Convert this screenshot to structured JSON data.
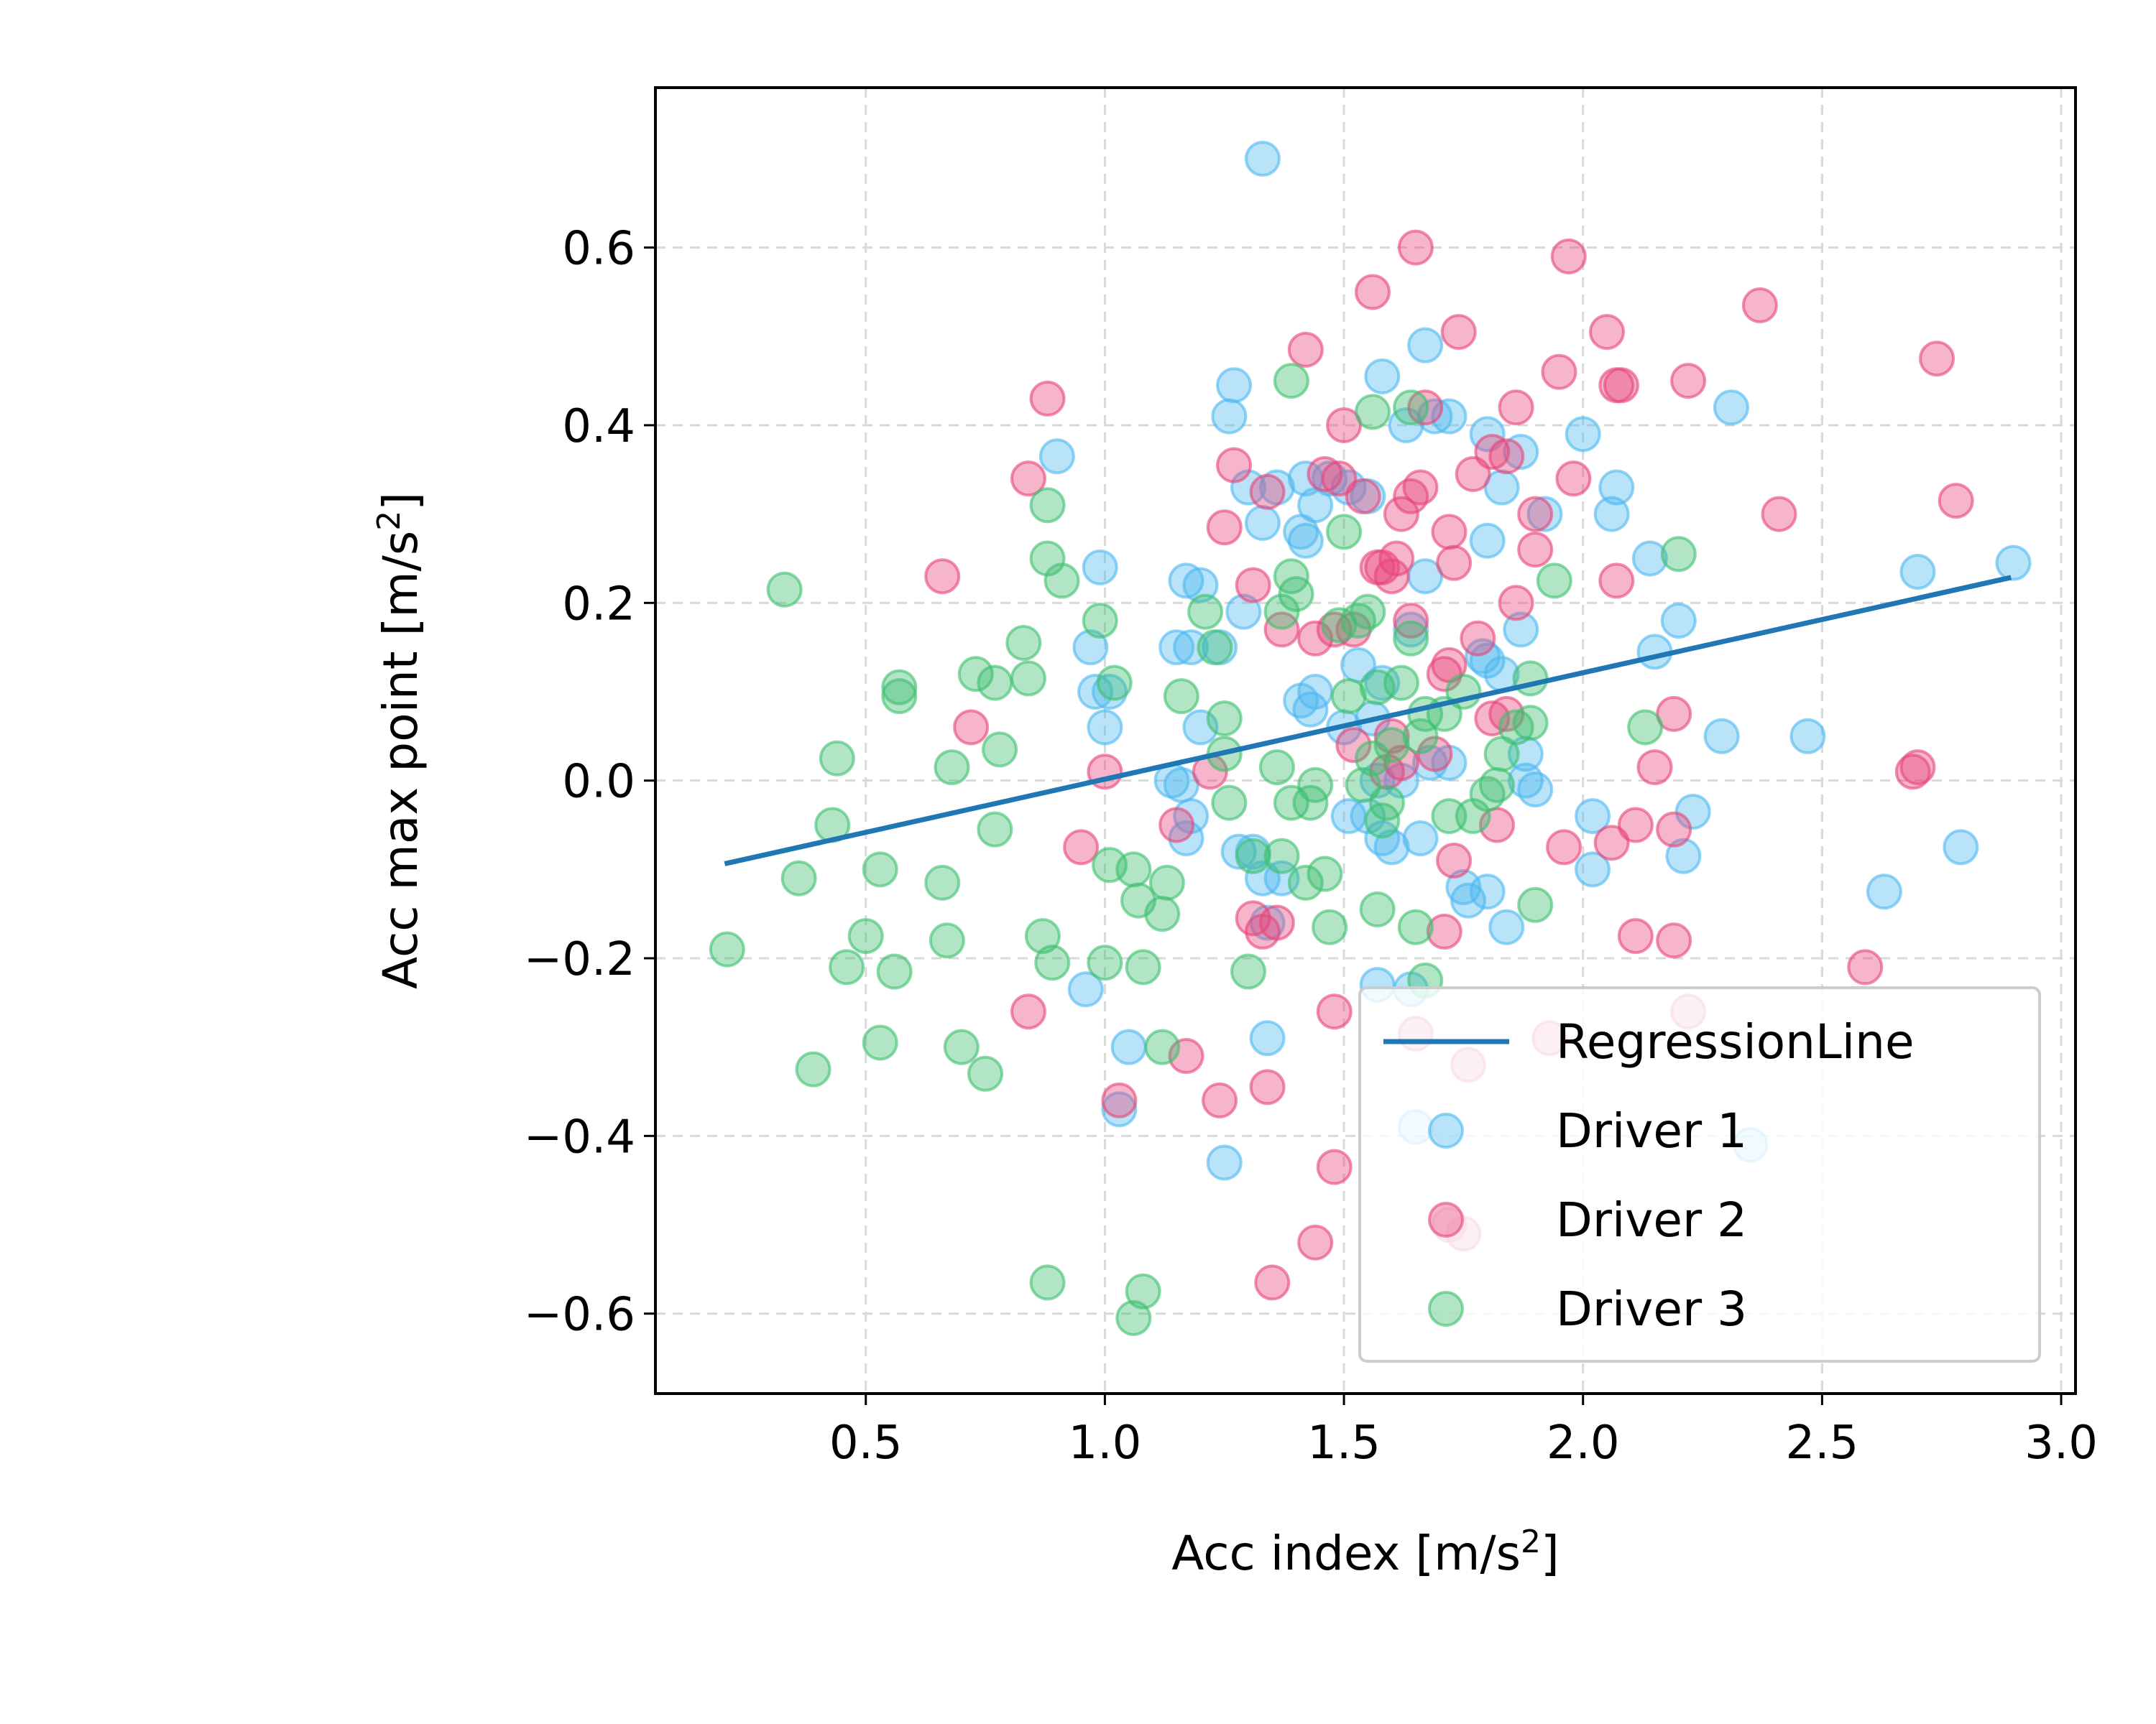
{
  "chart_data": {
    "type": "scatter",
    "xlabel": "Acc index [m/s",
    "xlabel_sup": "2",
    "xlabel_end": "]",
    "ylabel": "Acc max point [m/s",
    "ylabel_sup": "2",
    "ylabel_end": "]",
    "xlim": [
      0.06,
      3.03
    ],
    "ylim": [
      -0.69,
      0.78
    ],
    "x_ticks": [
      0.5,
      1.0,
      1.5,
      2.0,
      2.5,
      3.0
    ],
    "x_tick_labels": [
      "0.5",
      "1.0",
      "1.5",
      "2.0",
      "2.5",
      "3.0"
    ],
    "y_ticks": [
      -0.6,
      -0.4,
      -0.2,
      0.0,
      0.2,
      0.4,
      0.6
    ],
    "y_tick_labels": [
      "−0.6",
      "−0.4",
      "−0.2",
      "0.0",
      "0.2",
      "0.4",
      "0.6"
    ],
    "grid": true,
    "legend_position": "bottom-right",
    "regression": {
      "name": "RegressionLine",
      "color": "#1f77b4",
      "x": [
        0.21,
        2.89
      ],
      "y": [
        -0.093,
        0.228
      ]
    },
    "series": [
      {
        "name": "Driver 1",
        "color": "#4db8f0",
        "points": [
          [
            1.33,
            0.7
          ],
          [
            1.58,
            0.455
          ],
          [
            1.67,
            0.49
          ],
          [
            1.27,
            0.445
          ],
          [
            0.9,
            0.365
          ],
          [
            1.26,
            0.41
          ],
          [
            1.3,
            0.33
          ],
          [
            1.36,
            0.33
          ],
          [
            1.42,
            0.34
          ],
          [
            1.47,
            0.34
          ],
          [
            1.51,
            0.33
          ],
          [
            1.55,
            0.32
          ],
          [
            1.41,
            0.28
          ],
          [
            1.42,
            0.27
          ],
          [
            1.33,
            0.29
          ],
          [
            1.44,
            0.31
          ],
          [
            1.2,
            0.22
          ],
          [
            1.17,
            0.225
          ],
          [
            1.29,
            0.19
          ],
          [
            0.99,
            0.24
          ],
          [
            1.15,
            0.15
          ],
          [
            1.18,
            0.15
          ],
          [
            1.24,
            0.15
          ],
          [
            0.97,
            0.15
          ],
          [
            1.01,
            0.1
          ],
          [
            0.98,
            0.1
          ],
          [
            1.0,
            0.06
          ],
          [
            1.2,
            0.06
          ],
          [
            1.14,
            0.0
          ],
          [
            1.16,
            -0.005
          ],
          [
            1.17,
            -0.065
          ],
          [
            1.18,
            -0.04
          ],
          [
            1.28,
            -0.08
          ],
          [
            1.31,
            -0.08
          ],
          [
            1.33,
            -0.11
          ],
          [
            1.37,
            -0.11
          ],
          [
            1.34,
            -0.16
          ],
          [
            0.96,
            -0.235
          ],
          [
            1.05,
            -0.3
          ],
          [
            1.03,
            -0.37
          ],
          [
            1.34,
            -0.29
          ],
          [
            1.25,
            -0.43
          ],
          [
            1.57,
            -0.23
          ],
          [
            1.64,
            -0.235
          ],
          [
            1.65,
            -0.39
          ],
          [
            2.35,
            -0.41
          ],
          [
            1.75,
            -0.12
          ],
          [
            1.76,
            -0.135
          ],
          [
            1.8,
            -0.125
          ],
          [
            1.84,
            -0.165
          ],
          [
            1.6,
            -0.075
          ],
          [
            1.58,
            -0.065
          ],
          [
            1.66,
            -0.065
          ],
          [
            1.55,
            -0.04
          ],
          [
            1.51,
            -0.04
          ],
          [
            1.57,
            0.0
          ],
          [
            1.62,
            0.0
          ],
          [
            1.68,
            0.02
          ],
          [
            1.72,
            0.02
          ],
          [
            1.88,
            0.0
          ],
          [
            1.9,
            -0.01
          ],
          [
            1.88,
            0.03
          ],
          [
            1.53,
            0.13
          ],
          [
            1.58,
            0.11
          ],
          [
            1.44,
            0.1
          ],
          [
            1.41,
            0.09
          ],
          [
            1.5,
            0.06
          ],
          [
            1.56,
            0.07
          ],
          [
            1.64,
            0.17
          ],
          [
            1.67,
            0.23
          ],
          [
            1.8,
            0.135
          ],
          [
            1.83,
            0.12
          ],
          [
            1.79,
            0.14
          ],
          [
            1.87,
            0.17
          ],
          [
            1.92,
            0.3
          ],
          [
            1.8,
            0.27
          ],
          [
            1.8,
            0.39
          ],
          [
            1.83,
            0.33
          ],
          [
            1.87,
            0.37
          ],
          [
            1.69,
            0.41
          ],
          [
            1.72,
            0.41
          ],
          [
            1.63,
            0.4
          ],
          [
            2.0,
            0.39
          ],
          [
            2.07,
            0.33
          ],
          [
            2.06,
            0.3
          ],
          [
            2.14,
            0.25
          ],
          [
            2.31,
            0.42
          ],
          [
            2.15,
            0.145
          ],
          [
            2.2,
            0.18
          ],
          [
            2.29,
            0.05
          ],
          [
            2.47,
            0.05
          ],
          [
            2.02,
            -0.04
          ],
          [
            2.23,
            -0.035
          ],
          [
            2.21,
            -0.085
          ],
          [
            2.02,
            -0.1
          ],
          [
            2.63,
            -0.125
          ],
          [
            2.79,
            -0.075
          ],
          [
            2.7,
            0.235
          ],
          [
            2.9,
            0.245
          ],
          [
            1.43,
            0.08
          ]
        ]
      },
      {
        "name": "Driver 2",
        "color": "#e8457a",
        "points": [
          [
            1.65,
            0.6
          ],
          [
            1.97,
            0.59
          ],
          [
            1.56,
            0.55
          ],
          [
            2.37,
            0.535
          ],
          [
            1.42,
            0.485
          ],
          [
            1.74,
            0.505
          ],
          [
            2.05,
            0.505
          ],
          [
            2.07,
            0.445
          ],
          [
            2.08,
            0.445
          ],
          [
            1.95,
            0.46
          ],
          [
            2.22,
            0.45
          ],
          [
            2.74,
            0.475
          ],
          [
            0.88,
            0.43
          ],
          [
            1.5,
            0.4
          ],
          [
            1.67,
            0.42
          ],
          [
            1.86,
            0.42
          ],
          [
            1.27,
            0.355
          ],
          [
            1.34,
            0.325
          ],
          [
            1.46,
            0.345
          ],
          [
            1.49,
            0.34
          ],
          [
            1.54,
            0.32
          ],
          [
            1.64,
            0.32
          ],
          [
            1.66,
            0.33
          ],
          [
            1.77,
            0.345
          ],
          [
            1.81,
            0.37
          ],
          [
            1.84,
            0.365
          ],
          [
            1.9,
            0.3
          ],
          [
            1.98,
            0.34
          ],
          [
            2.41,
            0.3
          ],
          [
            2.78,
            0.315
          ],
          [
            0.84,
            0.34
          ],
          [
            1.25,
            0.285
          ],
          [
            1.62,
            0.3
          ],
          [
            1.72,
            0.28
          ],
          [
            1.57,
            0.24
          ],
          [
            1.58,
            0.24
          ],
          [
            1.6,
            0.23
          ],
          [
            1.61,
            0.25
          ],
          [
            1.73,
            0.245
          ],
          [
            1.9,
            0.26
          ],
          [
            2.07,
            0.225
          ],
          [
            1.31,
            0.22
          ],
          [
            0.66,
            0.23
          ],
          [
            1.37,
            0.17
          ],
          [
            1.44,
            0.16
          ],
          [
            1.48,
            0.17
          ],
          [
            1.52,
            0.17
          ],
          [
            1.64,
            0.18
          ],
          [
            1.72,
            0.13
          ],
          [
            1.71,
            0.12
          ],
          [
            1.78,
            0.16
          ],
          [
            1.86,
            0.2
          ],
          [
            1.81,
            0.07
          ],
          [
            1.84,
            0.075
          ],
          [
            1.6,
            0.05
          ],
          [
            1.62,
            0.02
          ],
          [
            1.69,
            0.03
          ],
          [
            1.59,
            0.01
          ],
          [
            1.52,
            0.04
          ],
          [
            1.22,
            0.01
          ],
          [
            1.0,
            0.01
          ],
          [
            0.72,
            0.06
          ],
          [
            2.15,
            0.015
          ],
          [
            2.19,
            0.075
          ],
          [
            2.69,
            0.01
          ],
          [
            2.7,
            0.015
          ],
          [
            1.96,
            -0.075
          ],
          [
            2.06,
            -0.07
          ],
          [
            2.11,
            -0.05
          ],
          [
            2.19,
            -0.055
          ],
          [
            2.11,
            -0.175
          ],
          [
            2.19,
            -0.18
          ],
          [
            2.59,
            -0.21
          ],
          [
            2.22,
            -0.26
          ],
          [
            1.93,
            -0.29
          ],
          [
            1.76,
            -0.32
          ],
          [
            1.73,
            -0.09
          ],
          [
            1.82,
            -0.05
          ],
          [
            1.71,
            -0.17
          ],
          [
            1.33,
            -0.17
          ],
          [
            1.36,
            -0.16
          ],
          [
            1.31,
            -0.155
          ],
          [
            1.48,
            -0.26
          ],
          [
            1.34,
            -0.345
          ],
          [
            1.48,
            -0.435
          ],
          [
            1.24,
            -0.36
          ],
          [
            1.17,
            -0.31
          ],
          [
            1.03,
            -0.36
          ],
          [
            0.95,
            -0.075
          ],
          [
            0.84,
            -0.26
          ],
          [
            1.15,
            -0.05
          ],
          [
            1.44,
            -0.52
          ],
          [
            1.35,
            -0.565
          ],
          [
            1.75,
            -0.51
          ],
          [
            1.65,
            -0.285
          ],
          [
            1.72,
            -0.5
          ]
        ]
      },
      {
        "name": "Driver 3",
        "color": "#3dbf6e",
        "points": [
          [
            0.33,
            0.215
          ],
          [
            0.44,
            0.025
          ],
          [
            0.43,
            -0.05
          ],
          [
            0.36,
            -0.11
          ],
          [
            0.21,
            -0.19
          ],
          [
            0.39,
            -0.325
          ],
          [
            0.46,
            -0.21
          ],
          [
            0.5,
            -0.175
          ],
          [
            0.53,
            -0.1
          ],
          [
            0.56,
            -0.215
          ],
          [
            0.53,
            -0.295
          ],
          [
            0.57,
            0.095
          ],
          [
            0.57,
            0.105
          ],
          [
            0.66,
            -0.115
          ],
          [
            0.67,
            -0.18
          ],
          [
            0.68,
            0.015
          ],
          [
            0.7,
            -0.3
          ],
          [
            0.73,
            0.12
          ],
          [
            0.75,
            -0.33
          ],
          [
            0.77,
            0.11
          ],
          [
            0.78,
            0.035
          ],
          [
            0.77,
            -0.055
          ],
          [
            0.83,
            0.155
          ],
          [
            0.84,
            0.115
          ],
          [
            0.88,
            0.31
          ],
          [
            0.88,
            0.25
          ],
          [
            0.91,
            0.225
          ],
          [
            0.87,
            -0.175
          ],
          [
            0.89,
            -0.205
          ],
          [
            0.99,
            0.18
          ],
          [
            1.02,
            0.11
          ],
          [
            1.01,
            -0.095
          ],
          [
            1.06,
            -0.1
          ],
          [
            1.07,
            -0.135
          ],
          [
            1.0,
            -0.205
          ],
          [
            1.08,
            -0.21
          ],
          [
            1.12,
            -0.15
          ],
          [
            1.13,
            -0.115
          ],
          [
            1.16,
            0.095
          ],
          [
            1.21,
            0.19
          ],
          [
            1.23,
            0.15
          ],
          [
            1.25,
            0.07
          ],
          [
            1.25,
            0.03
          ],
          [
            1.26,
            -0.025
          ],
          [
            1.31,
            -0.085
          ],
          [
            1.3,
            -0.215
          ],
          [
            1.08,
            -0.575
          ],
          [
            1.06,
            -0.605
          ],
          [
            0.88,
            -0.565
          ],
          [
            1.36,
            0.015
          ],
          [
            1.37,
            0.19
          ],
          [
            1.39,
            0.23
          ],
          [
            1.39,
            0.45
          ],
          [
            1.4,
            0.21
          ],
          [
            1.37,
            -0.085
          ],
          [
            1.39,
            -0.025
          ],
          [
            1.42,
            -0.115
          ],
          [
            1.43,
            -0.025
          ],
          [
            1.44,
            -0.005
          ],
          [
            1.46,
            -0.105
          ],
          [
            1.47,
            -0.165
          ],
          [
            1.49,
            0.175
          ],
          [
            1.5,
            0.28
          ],
          [
            1.53,
            0.18
          ],
          [
            1.55,
            0.19
          ],
          [
            1.56,
            0.415
          ],
          [
            1.57,
            0.105
          ],
          [
            1.58,
            -0.045
          ],
          [
            1.54,
            -0.005
          ],
          [
            1.57,
            -0.145
          ],
          [
            1.59,
            -0.025
          ],
          [
            1.6,
            0.04
          ],
          [
            1.62,
            0.11
          ],
          [
            1.64,
            0.42
          ],
          [
            1.65,
            -0.165
          ],
          [
            1.66,
            0.05
          ],
          [
            1.67,
            0.075
          ],
          [
            1.67,
            -0.225
          ],
          [
            1.71,
            0.075
          ],
          [
            1.72,
            -0.04
          ],
          [
            1.75,
            0.1
          ],
          [
            1.77,
            -0.04
          ],
          [
            1.8,
            -0.015
          ],
          [
            1.82,
            -0.005
          ],
          [
            1.83,
            0.03
          ],
          [
            1.86,
            0.06
          ],
          [
            1.89,
            0.065
          ],
          [
            1.89,
            0.115
          ],
          [
            1.9,
            -0.14
          ],
          [
            1.94,
            0.225
          ],
          [
            2.13,
            0.06
          ],
          [
            2.2,
            0.255
          ],
          [
            1.64,
            0.16
          ],
          [
            1.51,
            0.095
          ],
          [
            1.12,
            -0.3
          ],
          [
            1.56,
            0.025
          ]
        ]
      }
    ]
  }
}
